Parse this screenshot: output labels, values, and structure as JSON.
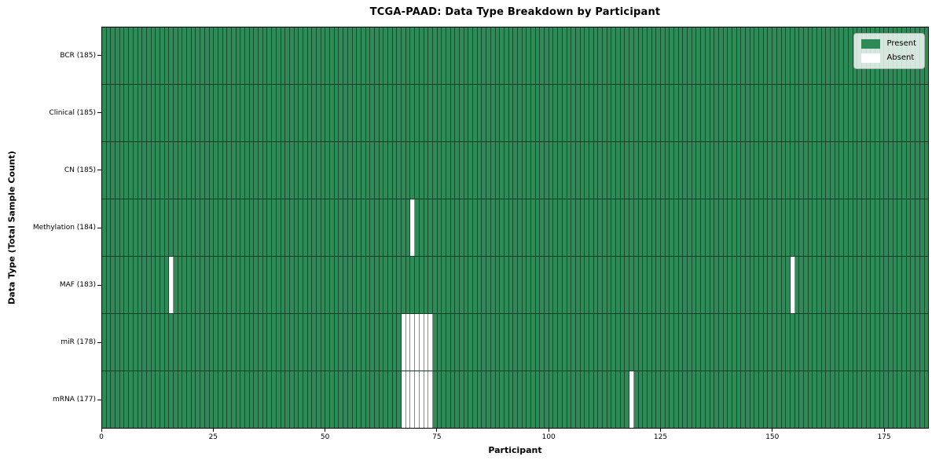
{
  "chart_data": {
    "type": "heatmap",
    "title": "TCGA-PAAD: Data Type Breakdown by Participant",
    "xlabel": "Participant",
    "ylabel": "Data Type (Total Sample Count)",
    "x_ticks": [
      0,
      25,
      50,
      75,
      100,
      125,
      150,
      175
    ],
    "x_range": [
      0,
      185
    ],
    "n_participants": 185,
    "grid": "cell-edges",
    "legend_position": "upper right",
    "colors": {
      "present": "#2e8b57",
      "absent": "#ffffff"
    },
    "legend": [
      {
        "label": "Present",
        "color": "#2e8b57"
      },
      {
        "label": "Absent",
        "color": "#ffffff"
      }
    ],
    "rows": [
      {
        "label": "BCR (185)",
        "data_type": "BCR",
        "total_samples": 185,
        "absent_participants": []
      },
      {
        "label": "Clinical (185)",
        "data_type": "Clinical",
        "total_samples": 185,
        "absent_participants": []
      },
      {
        "label": "CN (185)",
        "data_type": "CN",
        "total_samples": 185,
        "absent_participants": []
      },
      {
        "label": "Methylation (184)",
        "data_type": "Methylation",
        "total_samples": 184,
        "absent_participants": [
          69
        ]
      },
      {
        "label": "MAF (183)",
        "data_type": "MAF",
        "total_samples": 183,
        "absent_participants": [
          15,
          154
        ]
      },
      {
        "label": "miR (178)",
        "data_type": "miR",
        "total_samples": 178,
        "absent_participants": [
          67,
          68,
          69,
          70,
          71,
          72,
          73
        ]
      },
      {
        "label": "mRNA (177)",
        "data_type": "mRNA",
        "total_samples": 177,
        "absent_participants": [
          67,
          68,
          69,
          70,
          71,
          72,
          73,
          118
        ]
      }
    ]
  }
}
